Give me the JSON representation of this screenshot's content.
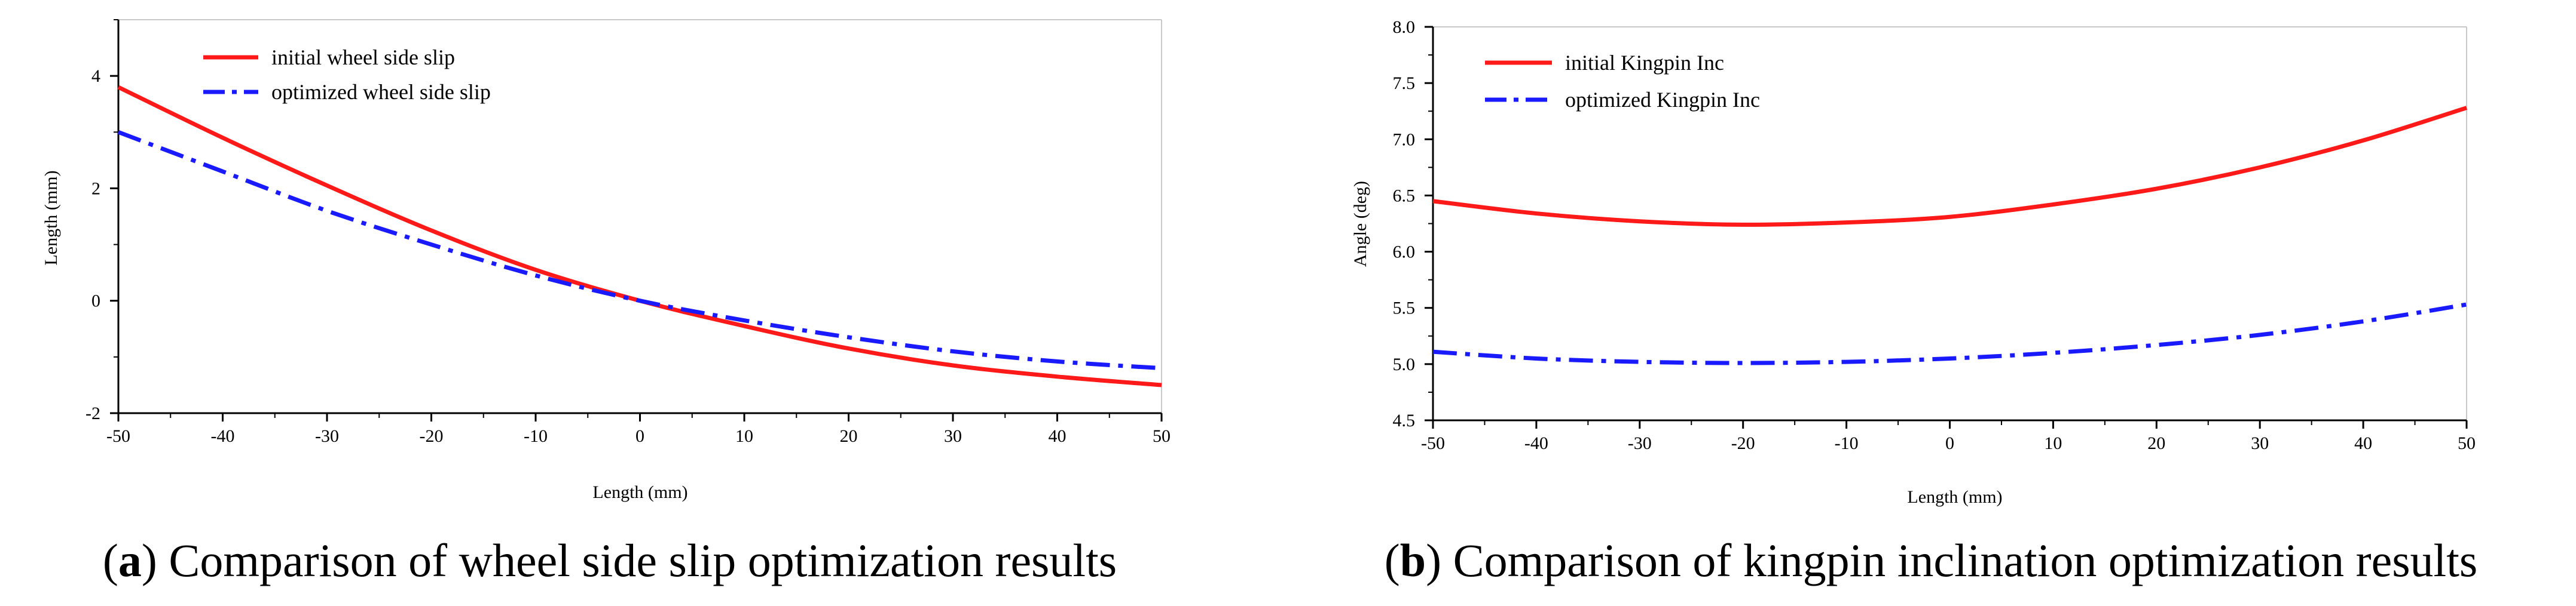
{
  "chart_data": [
    {
      "type": "line",
      "caption_letter": "a",
      "caption_text": "Comparison of wheel side slip optimization results",
      "xlabel": "Length (mm)",
      "ylabel": "Length (mm)",
      "xlim": [
        -50,
        50
      ],
      "ylim": [
        -2,
        5
      ],
      "xticks": [
        -50,
        -40,
        -30,
        -20,
        -10,
        0,
        10,
        20,
        30,
        40,
        50
      ],
      "yticks": [
        -2,
        0,
        2,
        4
      ],
      "legend_position": "top-left",
      "grid": false,
      "x": [
        -50,
        -40,
        -30,
        -20,
        -10,
        0,
        10,
        20,
        30,
        40,
        50
      ],
      "series": [
        {
          "name": "initial wheel side slip",
          "color": "#ff1a1a",
          "dash": "solid",
          "values": [
            3.8,
            2.9,
            2.05,
            1.25,
            0.55,
            0.0,
            -0.45,
            -0.85,
            -1.15,
            -1.35,
            -1.5
          ]
        },
        {
          "name": "optimized wheel side slip",
          "color": "#1a1aff",
          "dash": "dashdot",
          "values": [
            3.0,
            2.3,
            1.6,
            1.0,
            0.45,
            0.0,
            -0.35,
            -0.65,
            -0.9,
            -1.08,
            -1.2
          ]
        }
      ]
    },
    {
      "type": "line",
      "caption_letter": "b",
      "caption_text": "Comparison of kingpin inclination optimization results",
      "xlabel": "Length (mm)",
      "ylabel": "Angle (deg)",
      "xlim": [
        -50,
        50
      ],
      "ylim": [
        4.5,
        8.0
      ],
      "xticks": [
        -50,
        -40,
        -30,
        -20,
        -10,
        0,
        10,
        20,
        30,
        40,
        50
      ],
      "yticks": [
        4.5,
        5.0,
        5.5,
        6.0,
        6.5,
        7.0,
        7.5,
        8.0
      ],
      "legend_position": "top-left",
      "grid": false,
      "x": [
        -50,
        -40,
        -30,
        -20,
        -10,
        0,
        10,
        20,
        30,
        40,
        50
      ],
      "series": [
        {
          "name": "initial Kingpin Inc",
          "color": "#ff1a1a",
          "dash": "solid",
          "values": [
            6.45,
            6.34,
            6.27,
            6.24,
            6.26,
            6.31,
            6.42,
            6.56,
            6.75,
            6.99,
            7.28
          ]
        },
        {
          "name": "optimized Kingpin Inc",
          "color": "#1a1aff",
          "dash": "dashdot",
          "values": [
            5.11,
            5.05,
            5.02,
            5.01,
            5.02,
            5.05,
            5.1,
            5.17,
            5.26,
            5.38,
            5.53
          ]
        }
      ]
    }
  ]
}
